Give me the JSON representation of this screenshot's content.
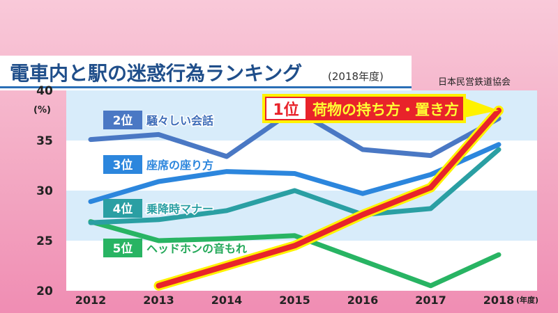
{
  "header": {
    "title": "電車内と駅の迷惑行為ランキング",
    "year_note": "(2018年度)",
    "source": "日本民営鉄道協会"
  },
  "chart_data": {
    "type": "line",
    "title": "電車内と駅の迷惑行為ランキング",
    "subtitle": "(2018年度)",
    "x": [
      "2012",
      "2013",
      "2014",
      "2015",
      "2016",
      "2017",
      "2018"
    ],
    "x_unit": "(年度)",
    "ylabel": "(%)",
    "ylim": [
      20,
      40
    ],
    "yticks": [
      20,
      25,
      30,
      35,
      40
    ],
    "grid": "horizontal bands",
    "series": [
      {
        "name": "荷物の持ち方・置き方",
        "rank": "1位",
        "color": "#e8232a",
        "values": [
          null,
          20.5,
          22.5,
          24.5,
          27.6,
          30.3,
          38.0
        ]
      },
      {
        "name": "騒々しい会話",
        "rank": "2位",
        "color": "#4a78c4",
        "values": [
          35.1,
          35.6,
          33.4,
          38.1,
          34.1,
          33.5,
          37.2
        ]
      },
      {
        "name": "座席の座り方",
        "rank": "3位",
        "color": "#2c86dd",
        "values": [
          28.9,
          30.9,
          31.9,
          31.7,
          29.7,
          31.6,
          34.6
        ]
      },
      {
        "name": "乗降時マナー",
        "rank": "4位",
        "color": "#2a9fa3",
        "values": [
          26.8,
          27.1,
          28.0,
          30.0,
          27.6,
          28.2,
          34.1
        ]
      },
      {
        "name": "ヘッドホンの音もれ",
        "rank": "5位",
        "color": "#28b463",
        "values": [
          26.9,
          25.0,
          25.2,
          25.5,
          23.0,
          20.5,
          23.6
        ]
      }
    ]
  }
}
